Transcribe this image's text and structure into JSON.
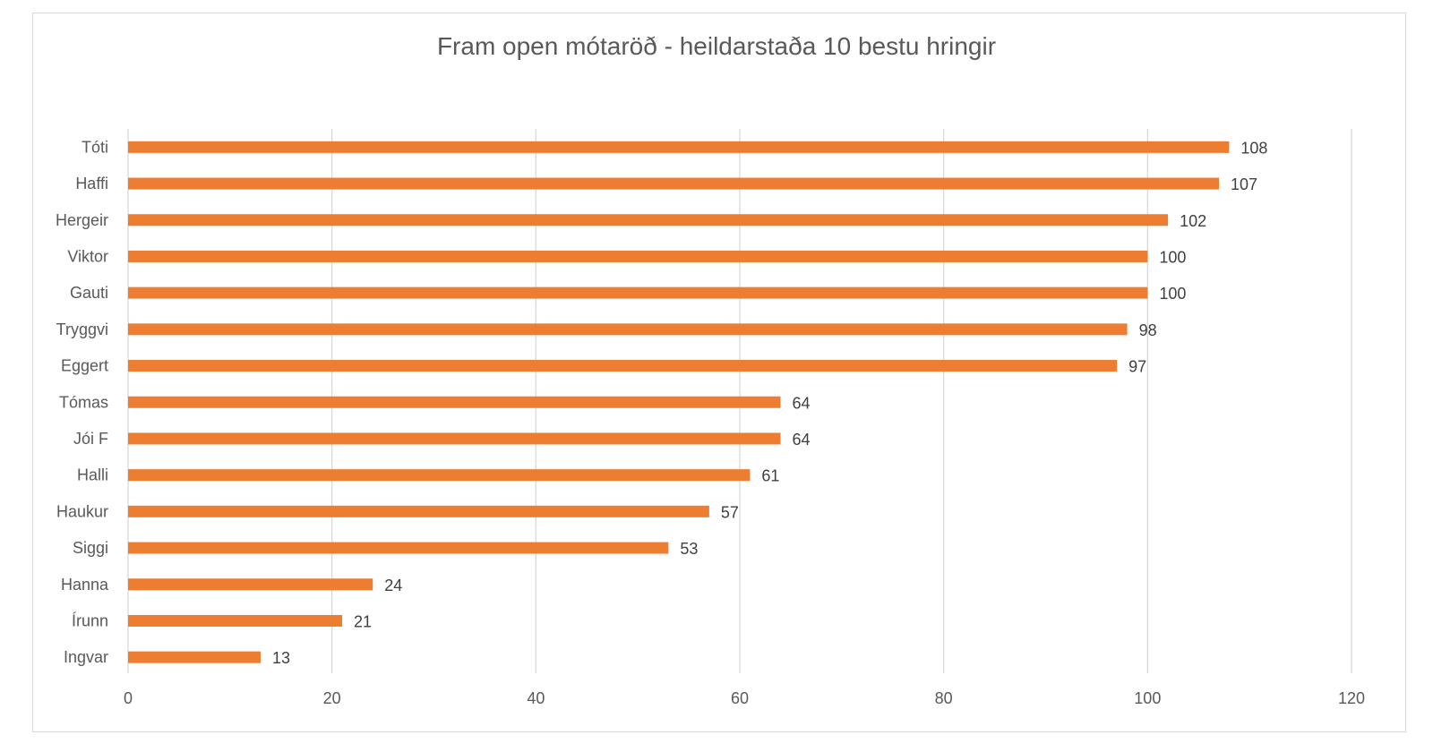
{
  "chart_data": {
    "type": "bar",
    "orientation": "horizontal",
    "title": "Fram open mótaröð - heildarstaða 10 bestu hringir",
    "categories": [
      "Tóti",
      "Haffi",
      "Hergeir",
      "Viktor",
      "Gauti",
      "Tryggvi",
      "Eggert",
      "Tómas",
      "Jói F",
      "Halli",
      "Haukur",
      "Siggi",
      "Hanna",
      "Írunn",
      "Ingvar"
    ],
    "values": [
      108,
      107,
      102,
      100,
      100,
      98,
      97,
      64,
      64,
      61,
      57,
      53,
      24,
      21,
      13
    ],
    "data_labels": [
      "108",
      "107",
      "102",
      "100",
      "100",
      "98",
      "97",
      "64",
      "64",
      "61",
      "57",
      "53",
      "24",
      "21",
      "13"
    ],
    "xlim": [
      0,
      120
    ],
    "x_ticks": [
      0,
      20,
      40,
      60,
      80,
      100,
      120
    ],
    "x_tick_labels": [
      "0",
      "20",
      "40",
      "60",
      "80",
      "100",
      "120"
    ],
    "grid": true,
    "legend": "none",
    "bar_color": "#ed7d31",
    "grid_color": "#d9d9d9",
    "text_color": "#595959"
  }
}
